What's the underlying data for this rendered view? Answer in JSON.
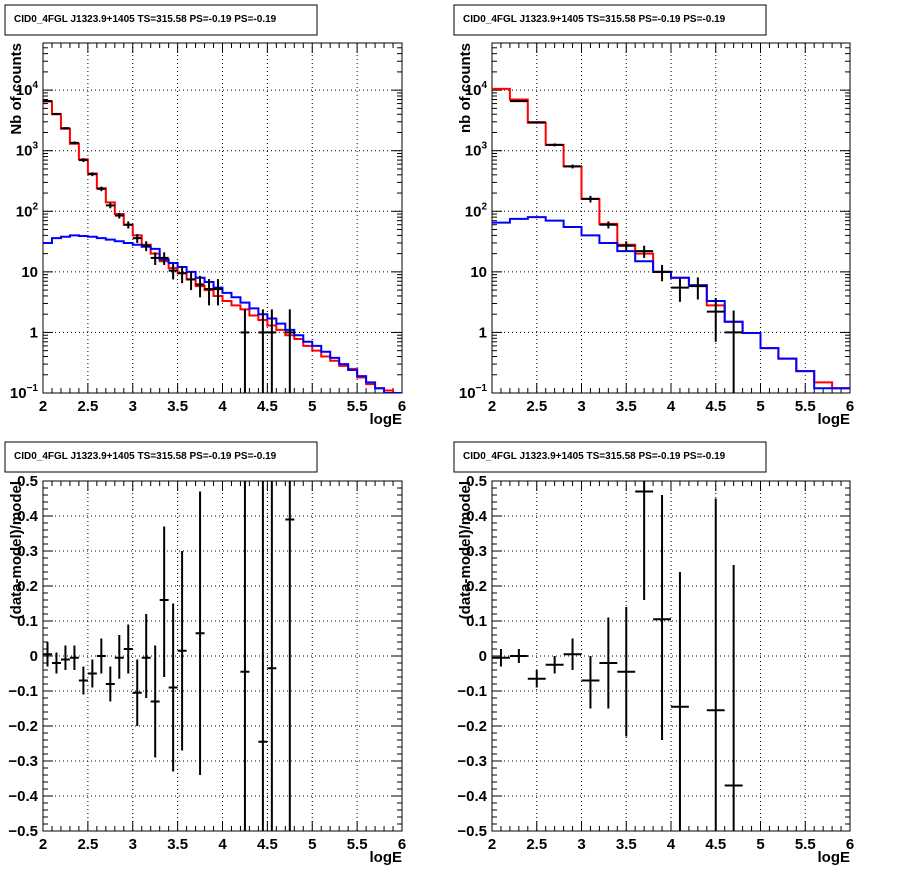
{
  "chart_data": [
    {
      "type": "histogram",
      "title": "CID0_4FGL J1323.9+1405 TS=315.58 PS=-0.19 PS=-0.19",
      "xlabel": "logE",
      "ylabel": "Nb of counts",
      "xlim": [
        2,
        6
      ],
      "ylim": [
        0.1,
        60000
      ],
      "yscale": "log",
      "grid": true,
      "x_ticks": [
        "2",
        "2.5",
        "3",
        "3.5",
        "4",
        "4.5",
        "5",
        "5.5",
        "6"
      ],
      "y_ticks": [
        {
          "v": 0.1,
          "base": "10",
          "exp": "−1"
        },
        {
          "v": 1,
          "label": "1"
        },
        {
          "v": 10,
          "label": "10"
        },
        {
          "v": 100,
          "base": "10",
          "exp": "2"
        },
        {
          "v": 1000,
          "base": "10",
          "exp": "3"
        },
        {
          "v": 10000,
          "base": "10",
          "exp": "4"
        }
      ],
      "bin_edges": [
        2.0,
        2.1,
        2.2,
        2.3,
        2.4,
        2.5,
        2.6,
        2.7,
        2.8,
        2.9,
        3.0,
        3.1,
        3.2,
        3.3,
        3.4,
        3.5,
        3.6,
        3.7,
        3.8,
        3.9,
        4.0,
        4.1,
        4.2,
        4.3,
        4.4,
        4.5,
        4.6,
        4.7,
        4.8,
        4.9,
        5.0,
        5.1,
        5.2,
        5.3,
        5.4,
        5.5,
        5.6,
        5.7,
        5.8,
        5.9,
        6.0
      ],
      "series": [
        {
          "color": "#ff0000",
          "style": "step",
          "values": [
            6500,
            4000,
            2300,
            1300,
            720,
            420,
            240,
            140,
            90,
            60,
            40,
            28,
            20,
            15,
            11.5,
            9.5,
            7.5,
            5.8,
            5.0,
            4.0,
            3.3,
            2.8,
            2.4,
            1.9,
            1.6,
            1.3,
            1.1,
            0.9,
            0.78,
            0.6,
            0.5,
            0.4,
            0.34,
            0.28,
            0.25,
            0.18,
            0.14,
            0.12,
            0.11,
            0.1
          ]
        },
        {
          "color": "#0000ff",
          "style": "step",
          "values": [
            30,
            36,
            38,
            40,
            39,
            38,
            36,
            34,
            32,
            30,
            28,
            26,
            24,
            16,
            14,
            12,
            10,
            8,
            6.8,
            5.5,
            4.5,
            3.8,
            3.1,
            2.5,
            2.0,
            1.7,
            1.4,
            1.1,
            0.9,
            0.7,
            0.6,
            0.48,
            0.38,
            0.3,
            0.24,
            0.19,
            0.15,
            0.12,
            0.1,
            0.1
          ]
        }
      ],
      "points": [
        {
          "x": 2.05,
          "xerr": 0.05,
          "y": 6600,
          "ylo": 6400,
          "yhi": 6800
        },
        {
          "x": 2.15,
          "xerr": 0.05,
          "y": 4050,
          "ylo": 3900,
          "yhi": 4200
        },
        {
          "x": 2.25,
          "xerr": 0.05,
          "y": 2350,
          "ylo": 2250,
          "yhi": 2450
        },
        {
          "x": 2.35,
          "xerr": 0.05,
          "y": 1350,
          "ylo": 1280,
          "yhi": 1420
        },
        {
          "x": 2.45,
          "xerr": 0.05,
          "y": 700,
          "ylo": 650,
          "yhi": 750
        },
        {
          "x": 2.55,
          "xerr": 0.05,
          "y": 410,
          "ylo": 380,
          "yhi": 440
        },
        {
          "x": 2.65,
          "xerr": 0.05,
          "y": 235,
          "ylo": 215,
          "yhi": 255
        },
        {
          "x": 2.75,
          "xerr": 0.05,
          "y": 125,
          "ylo": 112,
          "yhi": 138
        },
        {
          "x": 2.85,
          "xerr": 0.05,
          "y": 85,
          "ylo": 76,
          "yhi": 94
        },
        {
          "x": 2.95,
          "xerr": 0.05,
          "y": 60,
          "ylo": 52,
          "yhi": 68
        },
        {
          "x": 3.05,
          "xerr": 0.05,
          "y": 36,
          "ylo": 30,
          "yhi": 42
        },
        {
          "x": 3.15,
          "xerr": 0.05,
          "y": 27,
          "ylo": 22,
          "yhi": 32
        },
        {
          "x": 3.25,
          "xerr": 0.05,
          "y": 17,
          "ylo": 13,
          "yhi": 21
        },
        {
          "x": 3.35,
          "xerr": 0.05,
          "y": 17,
          "ylo": 13,
          "yhi": 21
        },
        {
          "x": 3.45,
          "xerr": 0.05,
          "y": 10.5,
          "ylo": 7.5,
          "yhi": 13.5
        },
        {
          "x": 3.55,
          "xerr": 0.05,
          "y": 9.5,
          "ylo": 6.5,
          "yhi": 12.5
        },
        {
          "x": 3.65,
          "xerr": 0.05,
          "y": 7.5,
          "ylo": 5,
          "yhi": 10
        },
        {
          "x": 3.75,
          "xerr": 0.05,
          "y": 6.2,
          "ylo": 3.8,
          "yhi": 8.6
        },
        {
          "x": 3.85,
          "xerr": 0.05,
          "y": 5.2,
          "ylo": 2.8,
          "yhi": 7.6
        },
        {
          "x": 3.95,
          "xerr": 0.05,
          "y": 5.2,
          "ylo": 2.8,
          "yhi": 7.6
        },
        {
          "x": 4.25,
          "xerr": 0.05,
          "y": 1,
          "ylo": 0.1,
          "yhi": 2.4
        },
        {
          "x": 4.45,
          "xerr": 0.05,
          "y": 1,
          "ylo": 0.1,
          "yhi": 2.4
        },
        {
          "x": 4.55,
          "xerr": 0.05,
          "y": 1,
          "ylo": 0.1,
          "yhi": 2.4
        },
        {
          "x": 4.75,
          "xerr": 0.05,
          "y": 1,
          "ylo": 0.1,
          "yhi": 2.4
        }
      ]
    },
    {
      "type": "histogram",
      "title": "CID0_4FGL J1323.9+1405 TS=315.58 PS=-0.19 PS=-0.19",
      "xlabel": "logE",
      "ylabel": "nb of counts",
      "xlim": [
        2,
        6
      ],
      "ylim": [
        0.1,
        60000
      ],
      "yscale": "log",
      "grid": true,
      "x_ticks": [
        "2",
        "2.5",
        "3",
        "3.5",
        "4",
        "4.5",
        "5",
        "5.5",
        "6"
      ],
      "y_ticks": [
        {
          "v": 0.1,
          "base": "10",
          "exp": "−1"
        },
        {
          "v": 1,
          "label": "1"
        },
        {
          "v": 10,
          "label": "10"
        },
        {
          "v": 100,
          "base": "10",
          "exp": "2"
        },
        {
          "v": 1000,
          "base": "10",
          "exp": "3"
        },
        {
          "v": 10000,
          "base": "10",
          "exp": "4"
        }
      ],
      "bin_edges": [
        2.0,
        2.2,
        2.4,
        2.6,
        2.8,
        3.0,
        3.2,
        3.4,
        3.6,
        3.8,
        4.0,
        4.2,
        4.4,
        4.6,
        4.8,
        5.0,
        5.2,
        5.4,
        5.6,
        5.8,
        6.0
      ],
      "series": [
        {
          "color": "#ff0000",
          "style": "step",
          "values": [
            10500,
            7000,
            2900,
            1250,
            550,
            160,
            62,
            28,
            20,
            10,
            8,
            6,
            2.8,
            1.5,
            0.98,
            0.55,
            0.37,
            0.23,
            0.15,
            0.12
          ]
        },
        {
          "color": "#0000ff",
          "style": "step",
          "values": [
            65,
            75,
            80,
            70,
            55,
            40,
            30,
            22,
            15,
            10,
            8,
            6,
            3.3,
            1.5,
            0.98,
            0.55,
            0.37,
            0.23,
            0.12,
            0.12
          ]
        }
      ],
      "points": [
        {
          "x": 2.3,
          "xerr": 0.1,
          "y": 6600,
          "ylo": 6400,
          "yhi": 6800
        },
        {
          "x": 2.5,
          "xerr": 0.1,
          "y": 2950,
          "ylo": 2850,
          "yhi": 3050
        },
        {
          "x": 2.7,
          "xerr": 0.1,
          "y": 1250,
          "ylo": 1180,
          "yhi": 1320
        },
        {
          "x": 2.9,
          "xerr": 0.1,
          "y": 550,
          "ylo": 510,
          "yhi": 590
        },
        {
          "x": 3.1,
          "xerr": 0.1,
          "y": 160,
          "ylo": 140,
          "yhi": 180
        },
        {
          "x": 3.3,
          "xerr": 0.1,
          "y": 60,
          "ylo": 52,
          "yhi": 68
        },
        {
          "x": 3.5,
          "xerr": 0.1,
          "y": 27,
          "ylo": 22,
          "yhi": 32
        },
        {
          "x": 3.7,
          "xerr": 0.1,
          "y": 22,
          "ylo": 17,
          "yhi": 27
        },
        {
          "x": 3.9,
          "xerr": 0.1,
          "y": 10,
          "ylo": 7,
          "yhi": 13
        },
        {
          "x": 4.1,
          "xerr": 0.1,
          "y": 5.5,
          "ylo": 3.2,
          "yhi": 7.8
        },
        {
          "x": 4.3,
          "xerr": 0.1,
          "y": 5.8,
          "ylo": 3.5,
          "yhi": 8.1
        },
        {
          "x": 4.5,
          "xerr": 0.1,
          "y": 2.2,
          "ylo": 0.7,
          "yhi": 3.7
        },
        {
          "x": 4.7,
          "xerr": 0.1,
          "y": 1.0,
          "ylo": 0.1,
          "yhi": 2.3
        }
      ]
    },
    {
      "type": "scatter",
      "title": "CID0_4FGL J1323.9+1405 TS=315.58 PS=-0.19 PS=-0.19",
      "xlabel": "logE",
      "ylabel": "(data-model)/model",
      "xlim": [
        2,
        6
      ],
      "ylim": [
        -0.5,
        0.5
      ],
      "yscale": "linear",
      "grid": true,
      "x_ticks": [
        "2",
        "2.5",
        "3",
        "3.5",
        "4",
        "4.5",
        "5",
        "5.5",
        "6"
      ],
      "y_ticks": [
        "−0.5",
        "−0.4",
        "−0.3",
        "−0.2",
        "−0.1",
        "0",
        "0.1",
        "0.2",
        "0.3",
        "0.4",
        "0.5"
      ],
      "points": [
        {
          "x": 2.05,
          "xerr": 0.05,
          "y": 0.005,
          "ylo": -0.03,
          "yhi": 0.04
        },
        {
          "x": 2.15,
          "xerr": 0.05,
          "y": -0.02,
          "ylo": -0.05,
          "yhi": 0.01
        },
        {
          "x": 2.25,
          "xerr": 0.05,
          "y": -0.01,
          "ylo": -0.04,
          "yhi": 0.03
        },
        {
          "x": 2.35,
          "xerr": 0.05,
          "y": -0.005,
          "ylo": -0.04,
          "yhi": 0.03
        },
        {
          "x": 2.45,
          "xerr": 0.05,
          "y": -0.07,
          "ylo": -0.11,
          "yhi": -0.03
        },
        {
          "x": 2.55,
          "xerr": 0.05,
          "y": -0.05,
          "ylo": -0.09,
          "yhi": -0.01
        },
        {
          "x": 2.65,
          "xerr": 0.05,
          "y": 0.0,
          "ylo": -0.05,
          "yhi": 0.05
        },
        {
          "x": 2.75,
          "xerr": 0.05,
          "y": -0.08,
          "ylo": -0.13,
          "yhi": -0.03
        },
        {
          "x": 2.85,
          "xerr": 0.05,
          "y": -0.005,
          "ylo": -0.065,
          "yhi": 0.06
        },
        {
          "x": 2.95,
          "xerr": 0.05,
          "y": 0.02,
          "ylo": -0.05,
          "yhi": 0.09
        },
        {
          "x": 3.05,
          "xerr": 0.05,
          "y": -0.105,
          "ylo": -0.2,
          "yhi": -0.01
        },
        {
          "x": 3.15,
          "xerr": 0.05,
          "y": -0.005,
          "ylo": -0.12,
          "yhi": 0.12
        },
        {
          "x": 3.25,
          "xerr": 0.05,
          "y": -0.13,
          "ylo": -0.29,
          "yhi": 0.03
        },
        {
          "x": 3.35,
          "xerr": 0.05,
          "y": 0.16,
          "ylo": -0.06,
          "yhi": 0.37
        },
        {
          "x": 3.45,
          "xerr": 0.05,
          "y": -0.09,
          "ylo": -0.33,
          "yhi": 0.15
        },
        {
          "x": 3.55,
          "xerr": 0.05,
          "y": 0.015,
          "ylo": -0.27,
          "yhi": 0.3
        },
        {
          "x": 3.75,
          "xerr": 0.05,
          "y": 0.065,
          "ylo": -0.34,
          "yhi": 0.47
        },
        {
          "x": 4.25,
          "xerr": 0.05,
          "y": -0.045,
          "ylo": -0.5,
          "yhi": 0.5
        },
        {
          "x": 4.45,
          "xerr": 0.05,
          "y": -0.245,
          "ylo": -0.5,
          "yhi": 0.5
        },
        {
          "x": 4.55,
          "xerr": 0.05,
          "y": -0.035,
          "ylo": -0.5,
          "yhi": 0.5
        },
        {
          "x": 4.75,
          "xerr": 0.05,
          "y": 0.39,
          "ylo": -0.5,
          "yhi": 0.5
        }
      ]
    },
    {
      "type": "scatter",
      "title": "CID0_4FGL J1323.9+1405 TS=315.58 PS=-0.19 PS=-0.19",
      "xlabel": "logE",
      "ylabel": "(data-model)/model",
      "xlim": [
        2,
        6
      ],
      "ylim": [
        -0.5,
        0.5
      ],
      "yscale": "linear",
      "grid": true,
      "x_ticks": [
        "2",
        "2.5",
        "3",
        "3.5",
        "4",
        "4.5",
        "5",
        "5.5",
        "6"
      ],
      "y_ticks": [
        "−0.5",
        "−0.4",
        "−0.3",
        "−0.2",
        "−0.1",
        "0",
        "0.1",
        "0.2",
        "0.3",
        "0.4",
        "0.5"
      ],
      "points": [
        {
          "x": 2.1,
          "xerr": 0.1,
          "y": -0.005,
          "ylo": -0.03,
          "yhi": 0.02
        },
        {
          "x": 2.3,
          "xerr": 0.1,
          "y": 0.0,
          "ylo": -0.02,
          "yhi": 0.02
        },
        {
          "x": 2.5,
          "xerr": 0.1,
          "y": -0.065,
          "ylo": -0.09,
          "yhi": -0.04
        },
        {
          "x": 2.7,
          "xerr": 0.1,
          "y": -0.025,
          "ylo": -0.05,
          "yhi": 0.0
        },
        {
          "x": 2.9,
          "xerr": 0.1,
          "y": 0.005,
          "ylo": -0.04,
          "yhi": 0.05
        },
        {
          "x": 3.1,
          "xerr": 0.1,
          "y": -0.07,
          "ylo": -0.15,
          "yhi": 0.0
        },
        {
          "x": 3.3,
          "xerr": 0.1,
          "y": -0.02,
          "ylo": -0.15,
          "yhi": 0.11
        },
        {
          "x": 3.5,
          "xerr": 0.1,
          "y": -0.045,
          "ylo": -0.23,
          "yhi": 0.14
        },
        {
          "x": 3.7,
          "xerr": 0.1,
          "y": 0.47,
          "ylo": 0.16,
          "yhi": 0.5
        },
        {
          "x": 3.9,
          "xerr": 0.1,
          "y": 0.105,
          "ylo": -0.24,
          "yhi": 0.46
        },
        {
          "x": 4.1,
          "xerr": 0.1,
          "y": -0.145,
          "ylo": -0.5,
          "yhi": 0.24
        },
        {
          "x": 4.5,
          "xerr": 0.1,
          "y": -0.155,
          "ylo": -0.5,
          "yhi": 0.45
        },
        {
          "x": 4.7,
          "xerr": 0.1,
          "y": -0.37,
          "ylo": -0.5,
          "yhi": 0.26
        }
      ]
    }
  ]
}
